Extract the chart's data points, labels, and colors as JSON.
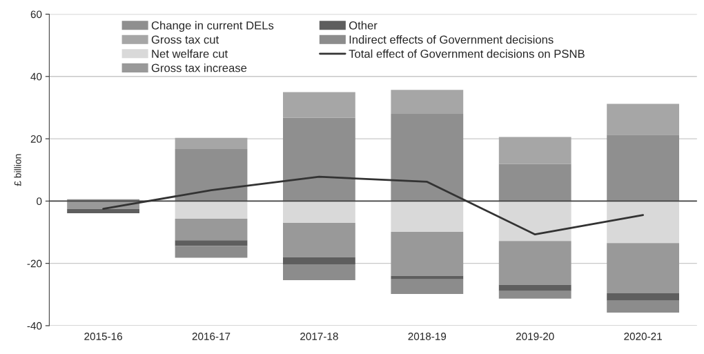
{
  "chart_data": {
    "type": "bar",
    "stacked": true,
    "ylabel": "£ billion",
    "categories": [
      "2015-16",
      "2016-17",
      "2017-18",
      "2018-19",
      "2019-20",
      "2020-21"
    ],
    "series": [
      {
        "name": "Change in current DELs",
        "color": "#8f8f8f",
        "values": [
          0.6,
          16.7,
          26.7,
          28.0,
          11.9,
          21.3
        ]
      },
      {
        "name": "Gross tax cut",
        "color": "#a6a6a6",
        "values": [
          0,
          3.6,
          8.3,
          7.7,
          8.7,
          9.9
        ]
      },
      {
        "name": "Net welfare cut",
        "color": "#d9d9d9",
        "values": [
          0,
          -5.7,
          -7.0,
          -9.9,
          -12.8,
          -13.5
        ]
      },
      {
        "name": "Gross tax increase",
        "color": "#999999",
        "values": [
          -2.5,
          -6.9,
          -11.0,
          -14.1,
          -14.1,
          -16.1
        ]
      },
      {
        "name": "Other",
        "color": "#5e5e5e",
        "values": [
          -1.4,
          -1.8,
          -2.3,
          -1.1,
          -2.0,
          -2.4
        ]
      },
      {
        "name": "Indirect effects of Government decisions",
        "color": "#8c8c8c",
        "values": [
          0,
          -3.8,
          -5.1,
          -4.7,
          -2.4,
          -3.8
        ]
      },
      {
        "name": "Total effect of Government decisions on PSNB",
        "type": "line",
        "color": "#333333",
        "values": [
          -2.5,
          3.5,
          7.8,
          6.2,
          -10.7,
          -4.5
        ]
      }
    ],
    "ylim": [
      -40,
      60
    ],
    "yticks": [
      -40,
      -20,
      0,
      20,
      40,
      60
    ],
    "grid": "y",
    "legend": "top",
    "line_style": "solid",
    "marker": "none"
  }
}
